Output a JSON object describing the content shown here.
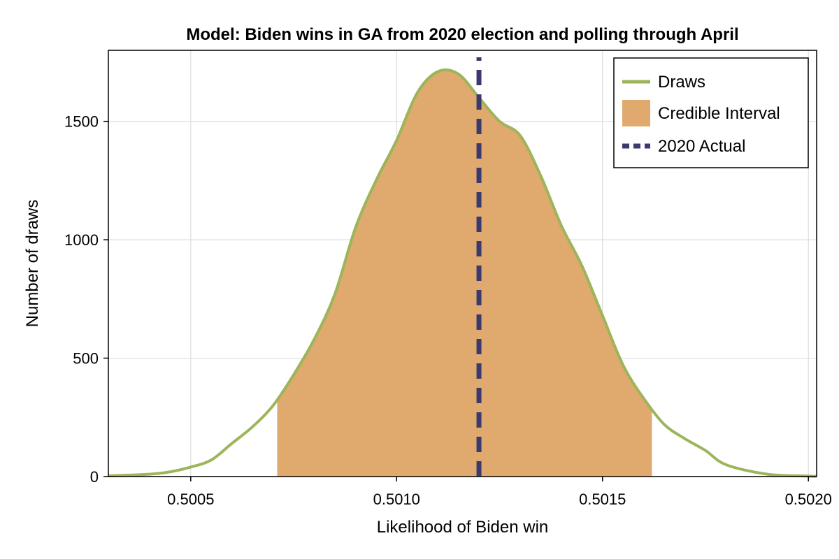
{
  "colors": {
    "draws_line": "#9DB55A",
    "credible_fill": "#E0A96E",
    "actual_line": "#3B3A6E",
    "grid": "#DDDDDD",
    "axis": "#000000"
  },
  "chart_data": {
    "type": "area",
    "title": "Model: Biden wins in GA from 2020 election and polling through April",
    "xlabel": "Likelihood of Biden win",
    "ylabel": "Number of draws",
    "xlim": [
      0.5003,
      0.50202
    ],
    "ylim": [
      0,
      1800
    ],
    "xticks": [
      0.5005,
      0.501,
      0.5015,
      0.502
    ],
    "xtick_labels": [
      "0.5005",
      "0.5010",
      "0.5015",
      "0.5020"
    ],
    "yticks": [
      0,
      500,
      1000,
      1500
    ],
    "ytick_labels": [
      "0",
      "500",
      "1000",
      "1500"
    ],
    "grid": true,
    "legend_position": "top-right",
    "series": [
      {
        "name": "Draws",
        "kind": "line",
        "x": [
          0.5003,
          0.5004,
          0.50045,
          0.5005,
          0.50055,
          0.5006,
          0.50065,
          0.5007,
          0.50075,
          0.5008,
          0.50085,
          0.5009,
          0.50095,
          0.501,
          0.50105,
          0.5011,
          0.50115,
          0.5012,
          0.50125,
          0.5013,
          0.50135,
          0.5014,
          0.50145,
          0.5015,
          0.50155,
          0.5016,
          0.50165,
          0.5017,
          0.50175,
          0.5018,
          0.5019,
          0.502,
          0.50202
        ],
        "y": [
          3,
          10,
          20,
          40,
          70,
          140,
          210,
          300,
          430,
          580,
          770,
          1050,
          1250,
          1420,
          1620,
          1710,
          1700,
          1600,
          1500,
          1440,
          1270,
          1060,
          890,
          680,
          470,
          330,
          220,
          160,
          110,
          50,
          10,
          2,
          1
        ]
      },
      {
        "name": "Credible Interval",
        "kind": "band",
        "x_range": [
          0.50071,
          0.50162
        ]
      },
      {
        "name": "2020 Actual",
        "kind": "vline",
        "x": 0.5012
      }
    ]
  }
}
